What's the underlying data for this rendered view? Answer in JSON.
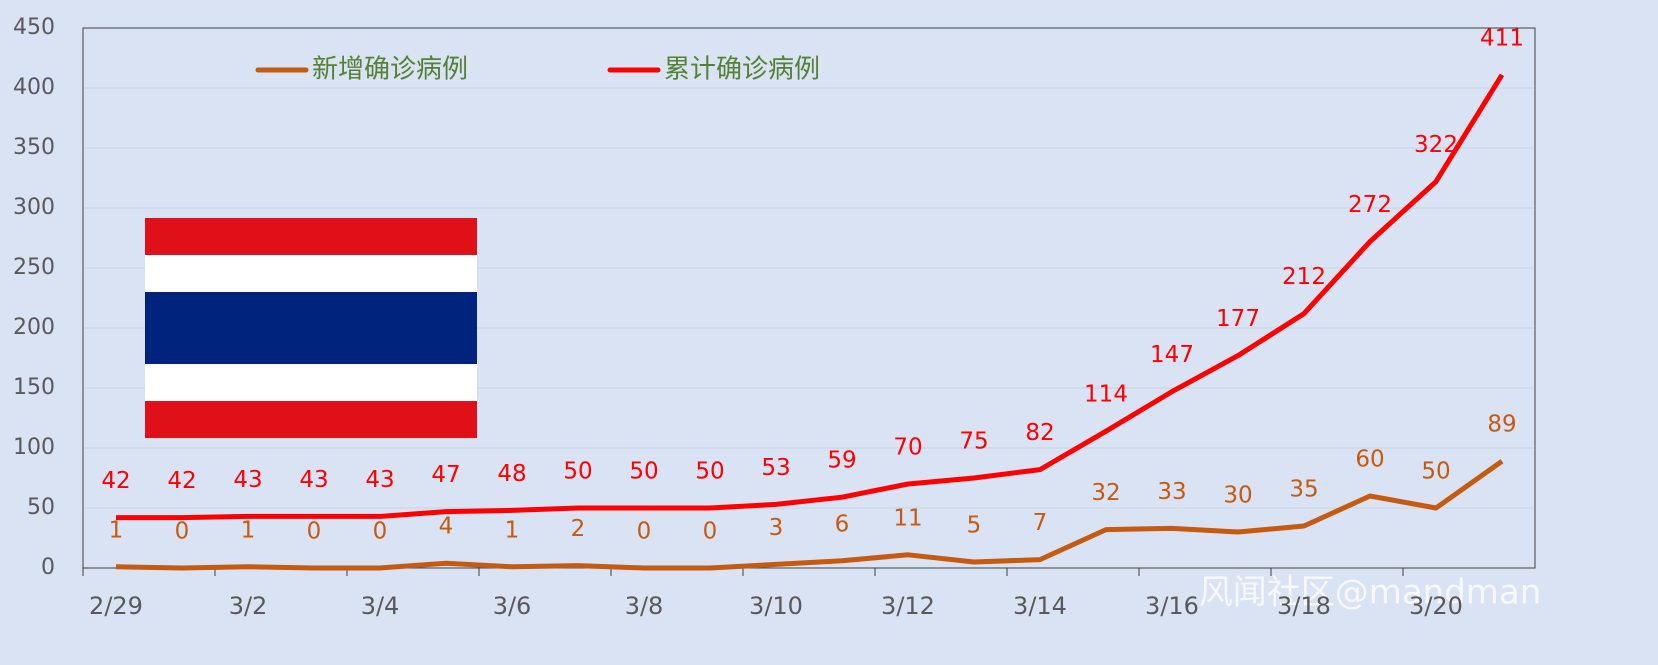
{
  "chart_data": {
    "type": "line",
    "categories": [
      "2/29",
      null,
      "3/2",
      null,
      "3/4",
      null,
      "3/6",
      null,
      "3/8",
      null,
      "3/10",
      null,
      "3/12",
      null,
      "3/14",
      null,
      "3/16",
      null,
      "3/18",
      null,
      "3/20",
      null
    ],
    "series": [
      {
        "name": "新增确诊病例",
        "color": "#c55a11",
        "values": [
          1,
          0,
          1,
          0,
          0,
          4,
          1,
          2,
          0,
          0,
          3,
          6,
          11,
          5,
          7,
          32,
          33,
          30,
          35,
          60,
          50,
          89
        ]
      },
      {
        "name": "累计确诊病例",
        "color": "#ff0000",
        "values": [
          42,
          42,
          43,
          43,
          43,
          47,
          48,
          50,
          50,
          50,
          53,
          59,
          70,
          75,
          82,
          114,
          147,
          177,
          212,
          272,
          322,
          411
        ]
      }
    ],
    "ylim": [
      0,
      450
    ],
    "yticks": [
      0,
      50,
      100,
      150,
      200,
      250,
      300,
      350,
      400,
      450
    ],
    "grid": true
  },
  "watermark": "风闻社区@mandman"
}
